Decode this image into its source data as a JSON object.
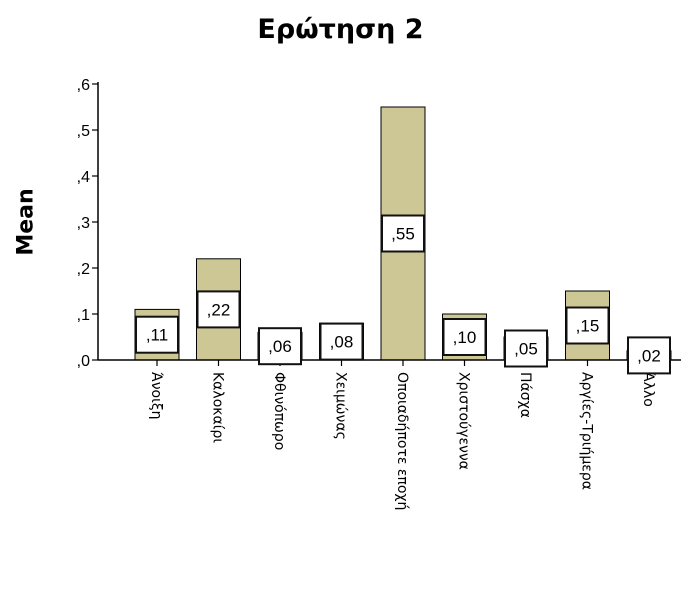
{
  "chart_data": {
    "type": "bar",
    "title": "Ερώτηση 2",
    "ylabel": "Mean",
    "xlabel": "",
    "categories": [
      "Άνοιξη",
      "Καλοκαίρι",
      "Φθινόπωρο",
      "Χειμώνας",
      "Οποιαδήποτε εποχή",
      "Χριστούγεννα",
      "Πάσχα",
      "Αργίες-Τριήμερα",
      "Άλλο"
    ],
    "values": [
      0.11,
      0.22,
      0.06,
      0.08,
      0.55,
      0.1,
      0.05,
      0.15,
      0.02
    ],
    "data_labels": [
      ",11",
      ",22",
      ",06",
      ",08",
      ",55",
      ",10",
      ",05",
      ",15",
      ",02"
    ],
    "ylim": [
      0,
      0.6
    ],
    "yticks": [
      0,
      0.1,
      0.2,
      0.3,
      0.4,
      0.5,
      0.6
    ],
    "ytick_labels": [
      ",0",
      ",1",
      ",2",
      ",3",
      ",4",
      ",5",
      ",6"
    ],
    "grid": false,
    "legend": "none",
    "bar_color": "#cdc795",
    "bar_stroke": "#000000"
  }
}
